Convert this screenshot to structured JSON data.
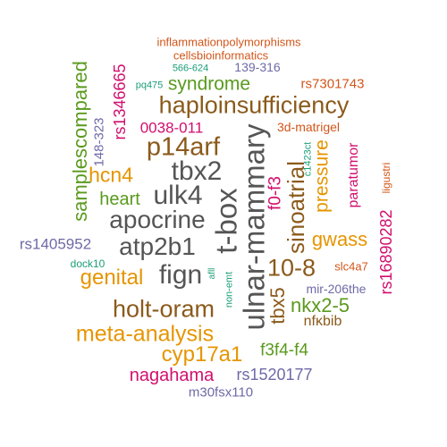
{
  "palette": {
    "gray": "#555555",
    "brown": "#8b5a1b",
    "orange": "#e69500",
    "green": "#5a9a1e",
    "magenta": "#d10f6e",
    "purple": "#6e6aa8",
    "teal": "#1b9e77",
    "rust": "#d2561a"
  },
  "words": [
    {
      "text": "inflammationpolymorphisms",
      "color": "#d2561a"
    },
    {
      "text": "cellsbioinformatics",
      "color": "#d2561a"
    },
    {
      "text": "566-624",
      "color": "#1b9e77"
    },
    {
      "text": "139-316",
      "color": "#6e6aa8"
    },
    {
      "text": "pq475",
      "color": "#1b9e77"
    },
    {
      "text": "syndrome",
      "color": "#5a9a1e"
    },
    {
      "text": "rs7301743",
      "color": "#d2561a"
    },
    {
      "text": "rs1346665",
      "color": "#d10f6e"
    },
    {
      "text": "haploinsufficiency",
      "color": "#8b5a1b"
    },
    {
      "text": "samplescompared",
      "color": "#5a9a1e"
    },
    {
      "text": "0038-011",
      "color": "#d10f6e"
    },
    {
      "text": "3d-matrigel",
      "color": "#d2561a"
    },
    {
      "text": "148-323",
      "color": "#6e6aa8"
    },
    {
      "text": "p14arf",
      "color": "#8b5a1b"
    },
    {
      "text": "ulnar-mammary",
      "color": "#555555"
    },
    {
      "text": "c1423ct",
      "color": "#1b9e77"
    },
    {
      "text": "pressure",
      "color": "#e69500"
    },
    {
      "text": "hcn4",
      "color": "#e69500"
    },
    {
      "text": "tbx2",
      "color": "#555555"
    },
    {
      "text": "t-box",
      "color": "#555555"
    },
    {
      "text": "f0-f3",
      "color": "#d10f6e"
    },
    {
      "text": "sinoatrial",
      "color": "#8b5a1b"
    },
    {
      "text": "paratumor",
      "color": "#d10f6e"
    },
    {
      "text": "ligustri",
      "color": "#d2561a"
    },
    {
      "text": "heart",
      "color": "#5a9a1e"
    },
    {
      "text": "ulk4",
      "color": "#555555"
    },
    {
      "text": "rs16890282",
      "color": "#d10f6e"
    },
    {
      "text": "apocrine",
      "color": "#555555"
    },
    {
      "text": "gwass",
      "color": "#e69500"
    },
    {
      "text": "rs1405952",
      "color": "#6e6aa8"
    },
    {
      "text": "atp2b1",
      "color": "#555555"
    },
    {
      "text": "dock10",
      "color": "#1b9e77"
    },
    {
      "text": "slc4a7",
      "color": "#d2561a"
    },
    {
      "text": "10-8",
      "color": "#8b5a1b"
    },
    {
      "text": "genital",
      "color": "#e69500"
    },
    {
      "text": "fign",
      "color": "#555555"
    },
    {
      "text": "afll",
      "color": "#1b9e77"
    },
    {
      "text": "non-emt",
      "color": "#1b9e77"
    },
    {
      "text": "tbx5",
      "color": "#8b5a1b"
    },
    {
      "text": "mir-206the",
      "color": "#6e6aa8"
    },
    {
      "text": "holt-oram",
      "color": "#8b5a1b"
    },
    {
      "text": "nkx2-5",
      "color": "#5a9a1e"
    },
    {
      "text": "nfκbib",
      "color": "#8b5a1b"
    },
    {
      "text": "meta-analysis",
      "color": "#e69500"
    },
    {
      "text": "cyp17a1",
      "color": "#e69500"
    },
    {
      "text": "f3f4-f4",
      "color": "#5a9a1e"
    },
    {
      "text": "nagahama",
      "color": "#d10f6e"
    },
    {
      "text": "rs1520177",
      "color": "#6e6aa8"
    },
    {
      "text": "m30fsx110",
      "color": "#6e6aa8"
    }
  ]
}
